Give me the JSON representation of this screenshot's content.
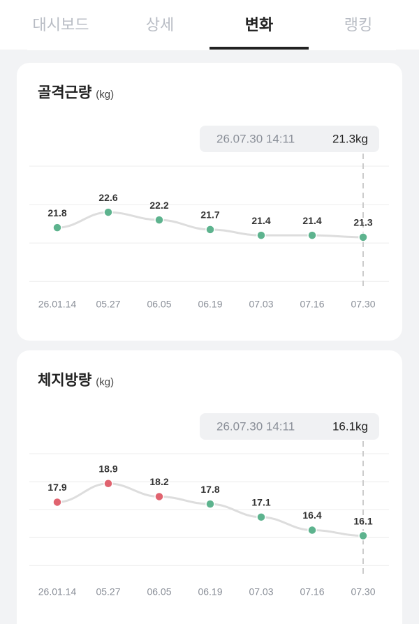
{
  "tabs": [
    "대시보드",
    "상세",
    "변화",
    "랭킹"
  ],
  "active_tab": 2,
  "chart_data": [
    {
      "type": "line",
      "title": "골격근량",
      "unit": "(kg)",
      "tooltip": {
        "date": "26.07.30 14:11",
        "value_label": "21.3kg"
      },
      "categories": [
        "26.01.14",
        "05.27",
        "06.05",
        "06.19",
        "07.03",
        "07.16",
        "07.30"
      ],
      "values": [
        21.8,
        22.6,
        22.2,
        21.7,
        21.4,
        21.4,
        21.3
      ],
      "point_colors": [
        "#5db38e",
        "#5db38e",
        "#5db38e",
        "#5db38e",
        "#5db38e",
        "#5db38e",
        "#5db38e"
      ],
      "line_color": "#dddddd",
      "ylim": [
        18.5,
        25
      ],
      "ygrid": [
        19,
        21,
        23,
        25
      ]
    },
    {
      "type": "line",
      "title": "체지방량",
      "unit": "(kg)",
      "tooltip": {
        "date": "26.07.30 14:11",
        "value_label": "16.1kg"
      },
      "categories": [
        "26.01.14",
        "05.27",
        "06.05",
        "06.19",
        "07.03",
        "07.16",
        "07.30"
      ],
      "values": [
        17.9,
        18.9,
        18.2,
        17.8,
        17.1,
        16.4,
        16.1
      ],
      "point_colors": [
        "#e0636f",
        "#e0636f",
        "#e0636f",
        "#5db38e",
        "#5db38e",
        "#5db38e",
        "#5db38e"
      ],
      "line_color": "#dddddd",
      "ylim": [
        13.8,
        20.5
      ],
      "ygrid": [
        14.5,
        16,
        17.5,
        19,
        20.5
      ]
    }
  ]
}
